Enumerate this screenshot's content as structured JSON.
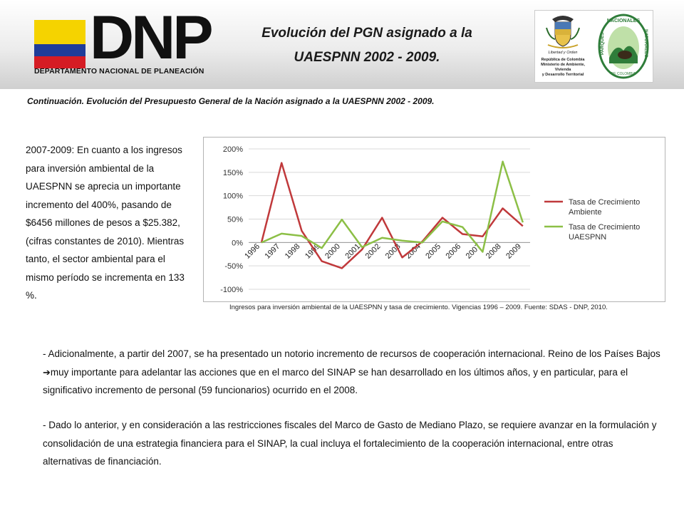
{
  "header": {
    "logo_text": "DNP",
    "logo_subtitle": "DEPARTAMENTO NACIONAL DE PLANEACIÓN",
    "title_line1": "Evolución del PGN asignado a la",
    "title_line2": "UAESPNN 2002 - 2009.",
    "shield_motto": "Libertad y Orden",
    "shield_text_1": "República de Colombia",
    "shield_text_2": "Ministerio de Ambiente, Vivienda",
    "shield_text_3": "y Desarrollo Territorial",
    "parques_top": "NACIONALES",
    "parques_left": "PARQUES",
    "parques_right": "NATURALES",
    "parques_bottom": "DE COLOMBIA"
  },
  "subtitle": "Continuación. Evolución del Presupuesto General de la Nación asignado a la UAESPNN  2002 - 2009.",
  "left_text": "2007-2009: En cuanto a los ingresos para inversión ambiental de la UAESPNN  se aprecia un importante incremento del 400%, pasando de $6456 millones de pesos a $25.382, (cifras constantes de 2010). Mientras tanto, el sector ambiental para el mismo período se incrementa en 133 %.",
  "caption": "Ingresos para inversión ambiental de la UAESPNN y tasa de crecimiento. Vigencias 1996 – 2009. Fuente: SDAS - DNP, 2010.",
  "para1_before": "- Adicionalmente, a partir del 2007, se ha presentado un notorio incremento de recursos de cooperación internacional. Reino de los Países Bajos ",
  "para1_arrow": "➔",
  "para1_after": "muy importante para adelantar las acciones que en el marco del SINAP  se han desarrollado en los últimos años, y  en particular, para el significativo incremento de personal (59 funcionarios) ocurrido en el 2008.",
  "para2": "- Dado lo anterior, y en consideración a las restricciones fiscales del Marco de Gasto de Mediano Plazo, se requiere avanzar en la formulación y consolidación de una estrategia financiera para el SINAP,  la cual incluya el fortalecimiento de la cooperación internacional, entre otras alternativas de financiación.",
  "chart_data": {
    "type": "line",
    "title": "",
    "xlabel": "",
    "ylabel": "",
    "categories": [
      "1996",
      "1997",
      "1998",
      "1999",
      "2000",
      "2001",
      "2002",
      "2003",
      "2004",
      "2005",
      "2006",
      "2007",
      "2008",
      "2009"
    ],
    "ylim": [
      -100,
      200
    ],
    "yticks": [
      "-100%",
      "-50%",
      "0%",
      "50%",
      "100%",
      "150%",
      "200%"
    ],
    "ytick_values": [
      -100,
      -50,
      0,
      50,
      100,
      150,
      200
    ],
    "grid": true,
    "legend_position": "right",
    "series": [
      {
        "name": "Tasa de Crecimiento Ambiente",
        "color": "#c0393b",
        "values": [
          0,
          170,
          25,
          -40,
          -55,
          -15,
          53,
          -32,
          2,
          53,
          18,
          13,
          73,
          35
        ]
      },
      {
        "name": "Tasa de Crecimiento UAESPNN",
        "color": "#8cbf46",
        "values": [
          0,
          19,
          14,
          -12,
          49,
          -10,
          10,
          4,
          0,
          45,
          33,
          -20,
          173,
          43
        ]
      }
    ]
  }
}
